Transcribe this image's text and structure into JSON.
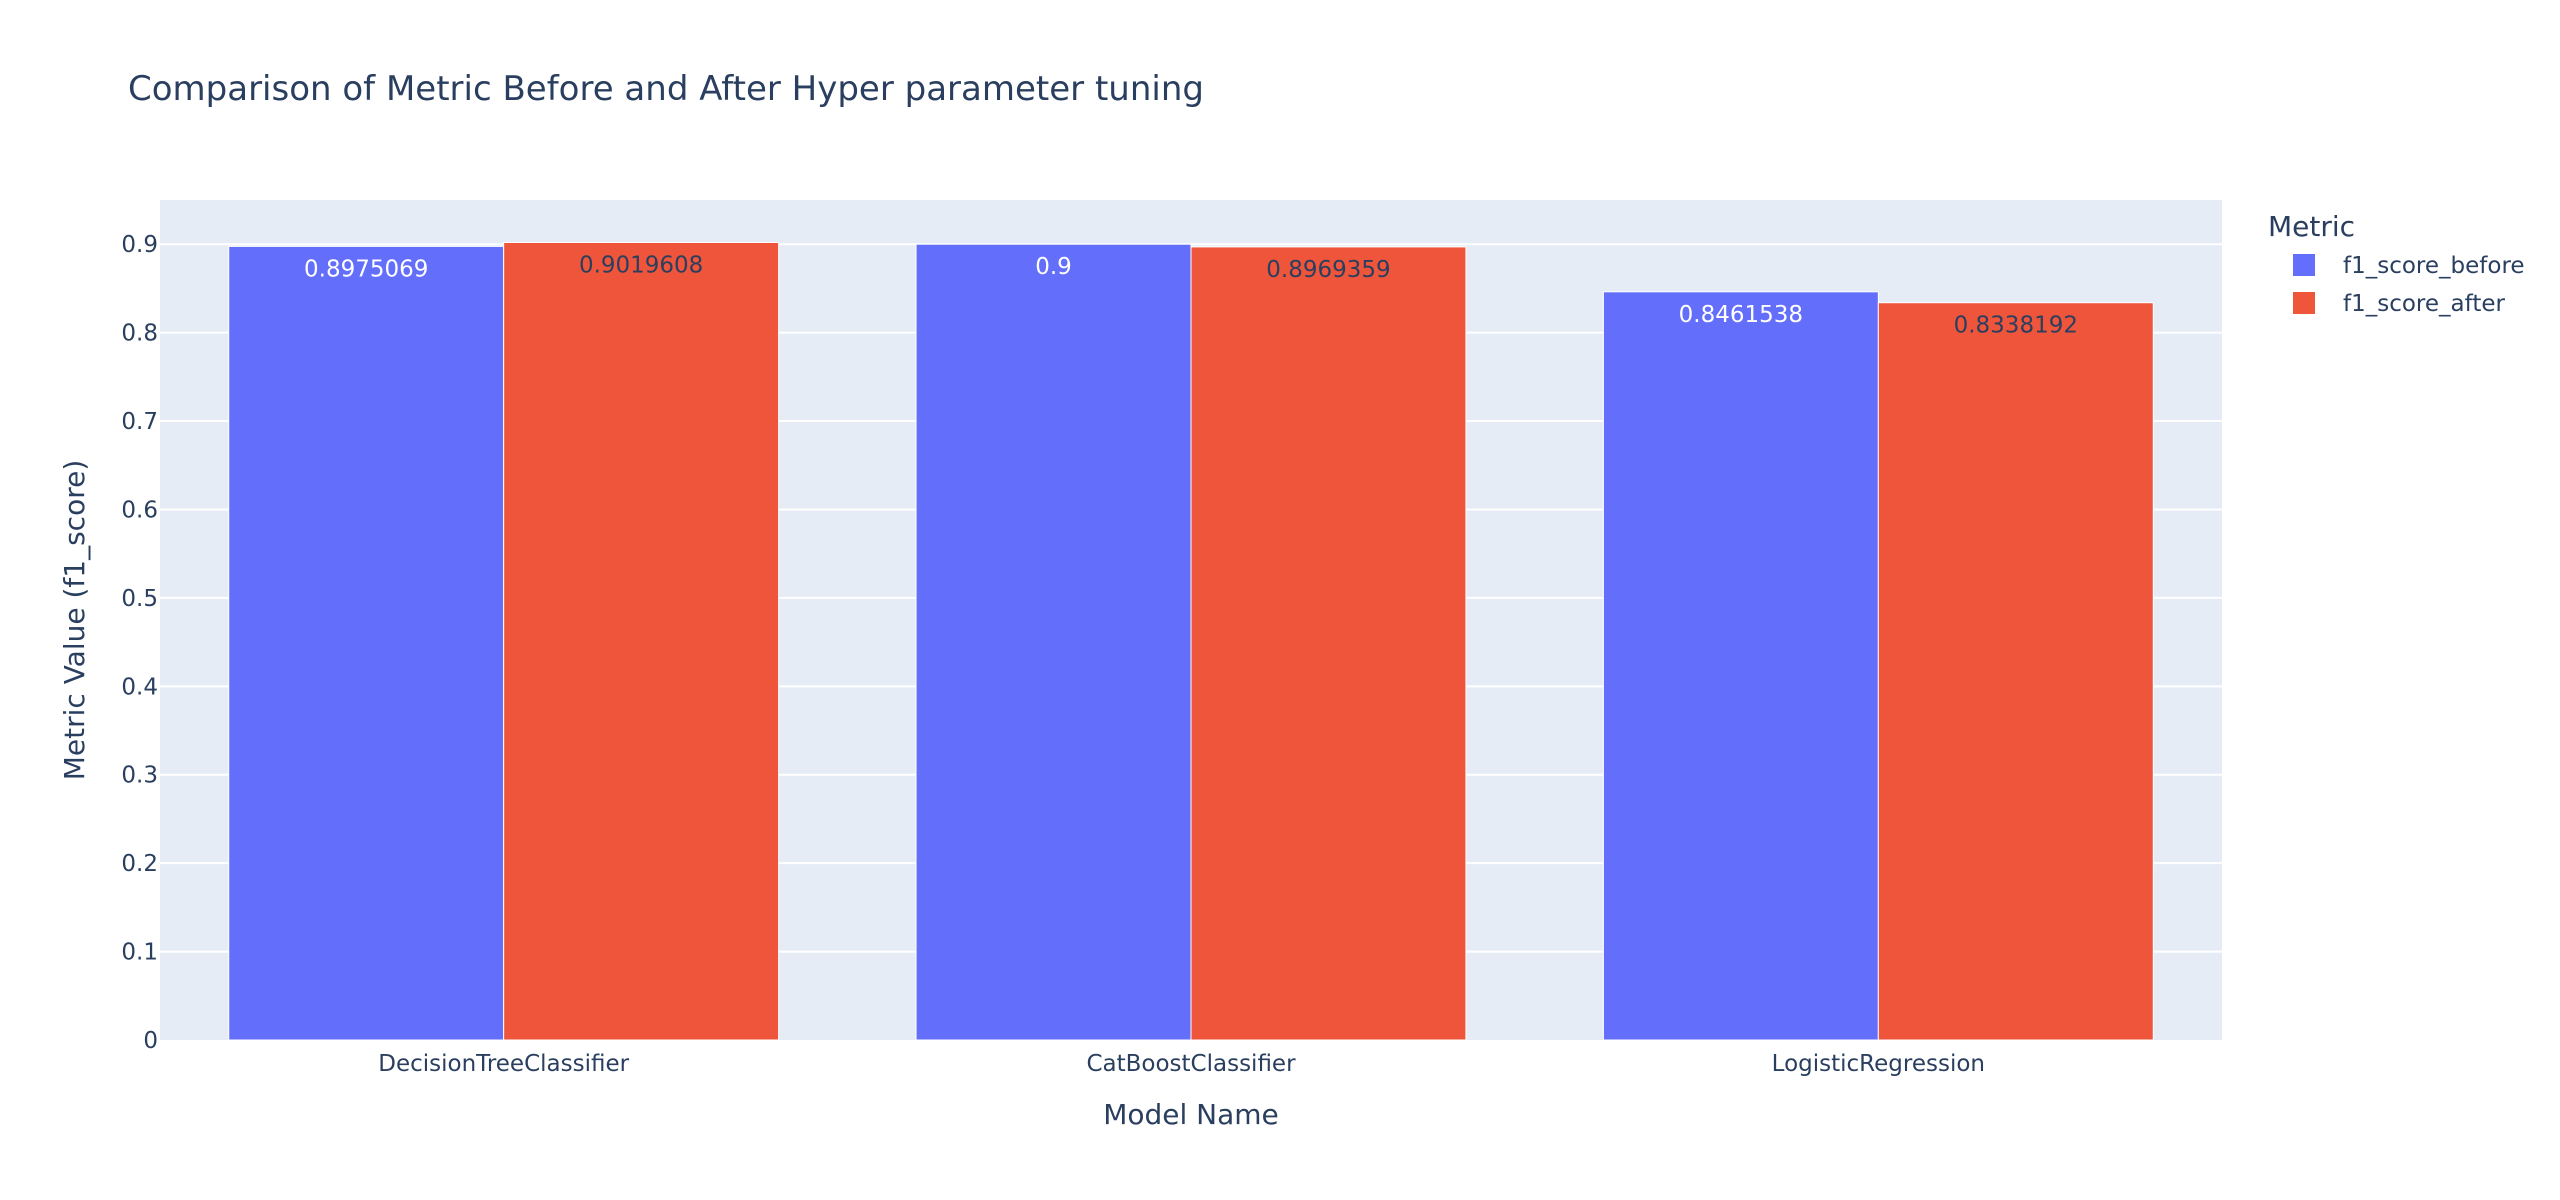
{
  "chart_data": {
    "type": "bar",
    "title": "Comparison of Metric Before and After Hyper parameter tuning",
    "xlabel": "Model Name",
    "ylabel": "Metric Value (f1_score)",
    "categories": [
      "DecisionTreeClassifier",
      "CatBoostClassifier",
      "LogisticRegression"
    ],
    "series": [
      {
        "name": "f1_score_before",
        "color": "#636efa",
        "label_color": "#ffffff",
        "values": [
          0.8975069,
          0.9,
          0.8461538
        ],
        "labels": [
          "0.8975069",
          "0.9",
          "0.8461538"
        ]
      },
      {
        "name": "f1_score_after",
        "color": "#ef553b",
        "label_color": "#2a3f5f",
        "values": [
          0.9019608,
          0.8969359,
          0.8338192
        ],
        "labels": [
          "0.9019608",
          "0.8969359",
          "0.8338192"
        ]
      }
    ],
    "ylim": [
      0,
      0.95
    ],
    "yticks": [
      0,
      0.1,
      0.2,
      0.3,
      0.4,
      0.5,
      0.6,
      0.7,
      0.8,
      0.9
    ],
    "ytick_labels": [
      "0",
      "0.1",
      "0.2",
      "0.3",
      "0.4",
      "0.5",
      "0.6",
      "0.7",
      "0.8",
      "0.9"
    ],
    "grid": true,
    "legend": {
      "title": "Metric",
      "position": "top-right"
    },
    "colors": {
      "plot_background": "#e5ecf6",
      "grid": "#ffffff"
    }
  }
}
